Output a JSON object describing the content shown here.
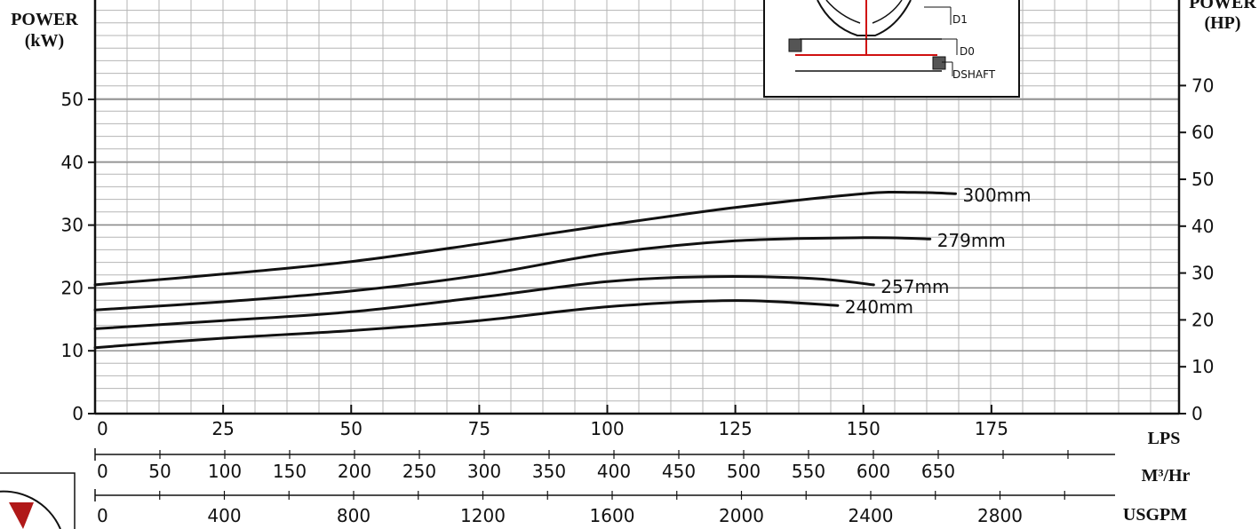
{
  "chart_data": {
    "type": "line",
    "title": "",
    "ylabel_left": [
      "POWER",
      "(kW)"
    ],
    "ylabel_right": [
      "POWER",
      "(HP)"
    ],
    "ylim_kw": [
      0,
      55
    ],
    "ylim_hp": [
      0,
      75
    ],
    "xlim_lps": [
      0,
      190
    ],
    "y_ticks_kw": [
      0,
      10,
      20,
      30,
      40,
      50
    ],
    "y_ticks_hp": [
      0,
      10,
      20,
      30,
      40,
      50,
      60,
      70
    ],
    "x_axes": [
      {
        "unit": "LPS",
        "ticks": [
          "0",
          "25",
          "50",
          "75",
          "100",
          "125",
          "150",
          "175"
        ],
        "step": 25
      },
      {
        "unit": "M³/Hr",
        "ticks": [
          "0",
          "50",
          "100",
          "150",
          "200",
          "250",
          "300",
          "350",
          "400",
          "450",
          "500",
          "550",
          "600",
          "650"
        ],
        "step": 50
      },
      {
        "unit": "USGPM",
        "ticks": [
          "0",
          "400",
          "800",
          "1200",
          "1600",
          "2000",
          "2400",
          "2800"
        ],
        "step": 400
      }
    ],
    "grid": true,
    "series": [
      {
        "name": "300mm",
        "x": [
          0,
          25,
          50,
          75,
          100,
          125,
          150,
          160,
          168
        ],
        "y": [
          20.5,
          22.2,
          24.2,
          27,
          30,
          32.8,
          35,
          35.2,
          35
        ]
      },
      {
        "name": "279mm",
        "x": [
          0,
          25,
          50,
          75,
          100,
          125,
          150,
          163
        ],
        "y": [
          16.5,
          17.8,
          19.5,
          22,
          25.5,
          27.5,
          28,
          27.8
        ]
      },
      {
        "name": "257mm",
        "x": [
          0,
          25,
          50,
          75,
          100,
          120,
          140,
          152
        ],
        "y": [
          13.5,
          14.8,
          16.2,
          18.5,
          21,
          21.8,
          21.5,
          20.5
        ]
      },
      {
        "name": "240mm",
        "x": [
          0,
          25,
          50,
          75,
          100,
          125,
          145
        ],
        "y": [
          10.5,
          12,
          13.2,
          14.8,
          17,
          18,
          17.2
        ]
      }
    ],
    "inset_labels": [
      "D1",
      "D0",
      "DSHAFT"
    ]
  }
}
